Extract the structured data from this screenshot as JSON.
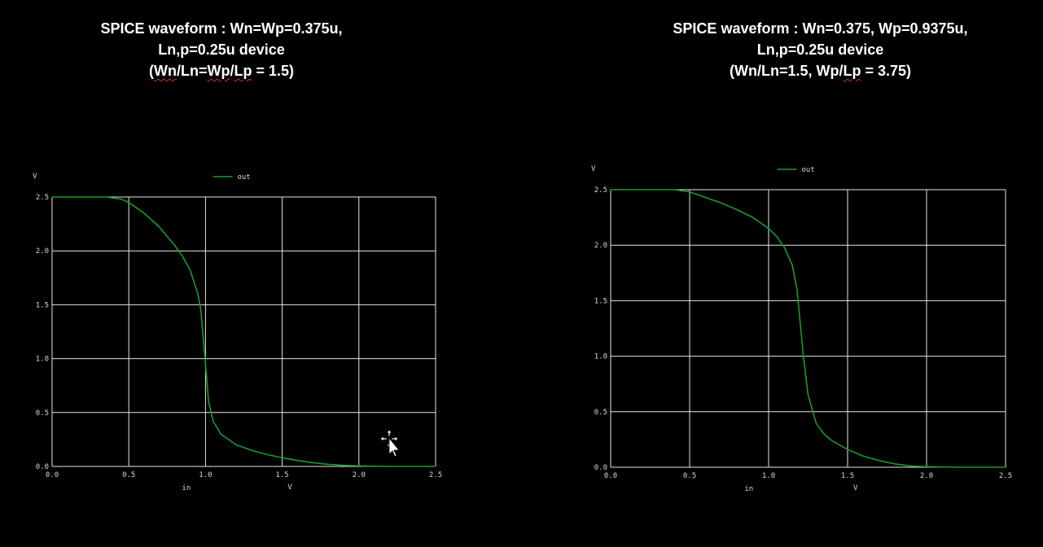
{
  "titles": {
    "left": {
      "line1": "SPICE waveform : Wn=Wp=0.375u,",
      "line2": "Ln,p=0.25u device",
      "line3_open": "(",
      "line3_wn": "Wn",
      "line3_mid": "/Ln=",
      "line3_wp": "Wp",
      "line3_mid2": "/",
      "line3_lp": "Lp",
      "line3_end": " = 1.5)"
    },
    "right": {
      "line1": "SPICE waveform : Wn=0.375, Wp=0.9375u,",
      "line2": "Ln,p=0.25u device",
      "line3_a": "(Wn/Ln=1.5, Wp/",
      "line3_lp": "Lp",
      "line3_b": " = 3.75)"
    }
  },
  "colors": {
    "background": "#000000",
    "grid": "#e6e6e6",
    "trace": "#1a9a2a",
    "text": "#ffffff"
  },
  "chart_data": [
    {
      "type": "line",
      "title": "SPICE waveform : Wn=Wp=0.375u, Ln,p=0.25u device (Wn/Ln=Wp/Lp = 1.5)",
      "ylabel": "V",
      "xlabel": "in",
      "xunit": "V",
      "legend": "top-center",
      "grid": true,
      "xlim": [
        0,
        2.5
      ],
      "ylim": [
        0,
        2.5
      ],
      "x_ticks": [
        "0.0",
        "0.5",
        "1.0",
        "1.5",
        "2.0",
        "2.5"
      ],
      "y_ticks": [
        "0.0",
        "0.5",
        "1.0",
        "1.5",
        "2.0",
        "2.5"
      ],
      "series": [
        {
          "name": "out",
          "x": [
            0,
            0.2,
            0.35,
            0.45,
            0.5,
            0.55,
            0.6,
            0.7,
            0.8,
            0.85,
            0.9,
            0.95,
            0.97,
            1.0,
            1.02,
            1.05,
            1.1,
            1.15,
            1.2,
            1.3,
            1.4,
            1.5,
            1.6,
            1.7,
            1.8,
            1.9,
            2.0,
            2.2,
            2.5
          ],
          "y": [
            2.5,
            2.5,
            2.5,
            2.48,
            2.45,
            2.4,
            2.35,
            2.22,
            2.05,
            1.95,
            1.82,
            1.6,
            1.45,
            0.95,
            0.6,
            0.42,
            0.3,
            0.25,
            0.2,
            0.15,
            0.11,
            0.08,
            0.055,
            0.035,
            0.02,
            0.01,
            0.005,
            0.0,
            0.0
          ]
        }
      ]
    },
    {
      "type": "line",
      "title": "SPICE waveform : Wn=0.375, Wp=0.9375u, Ln,p=0.25u device (Wn/Ln=1.5, Wp/Lp = 3.75)",
      "ylabel": "V",
      "xlabel": "in",
      "xunit": "V",
      "legend": "top-center",
      "grid": true,
      "xlim": [
        0,
        2.5
      ],
      "ylim": [
        0,
        2.5
      ],
      "x_ticks": [
        "0.0",
        "0.5",
        "1.0",
        "1.5",
        "2.0",
        "2.5"
      ],
      "y_ticks": [
        "0.0",
        "0.5",
        "1.0",
        "1.5",
        "2.0",
        "2.5"
      ],
      "series": [
        {
          "name": "out",
          "x": [
            0,
            0.2,
            0.4,
            0.5,
            0.6,
            0.7,
            0.8,
            0.9,
            1.0,
            1.05,
            1.1,
            1.15,
            1.18,
            1.2,
            1.22,
            1.25,
            1.3,
            1.35,
            1.4,
            1.5,
            1.6,
            1.7,
            1.8,
            1.9,
            2.0,
            2.2,
            2.5
          ],
          "y": [
            2.5,
            2.5,
            2.5,
            2.48,
            2.43,
            2.38,
            2.32,
            2.25,
            2.15,
            2.08,
            1.98,
            1.82,
            1.6,
            1.3,
            1.0,
            0.65,
            0.4,
            0.3,
            0.24,
            0.16,
            0.1,
            0.06,
            0.03,
            0.01,
            0.005,
            0.0,
            0.0
          ]
        }
      ]
    }
  ]
}
